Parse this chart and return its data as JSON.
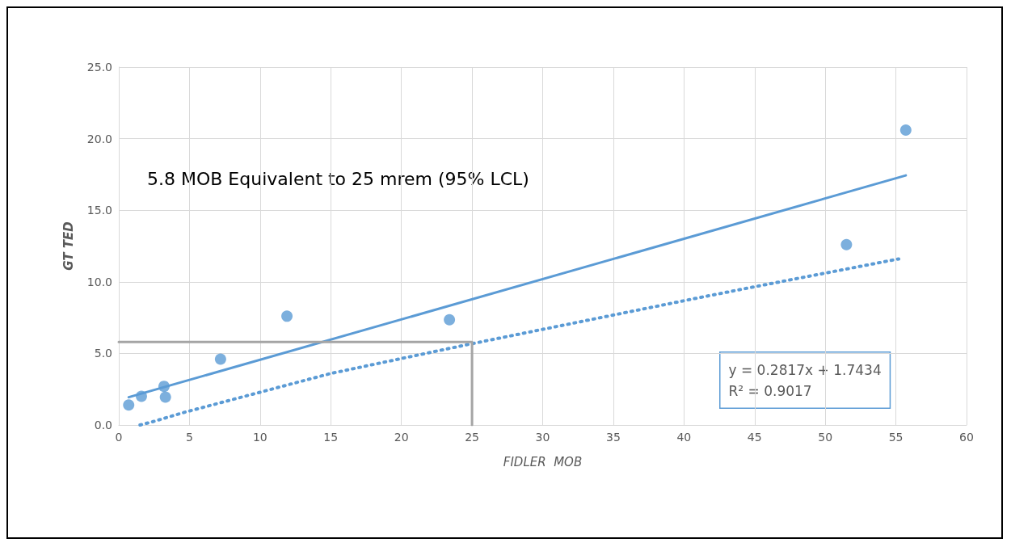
{
  "chart_data": {
    "type": "scatter",
    "xlabel": "FIDLER  MOB",
    "ylabel": "GT TED",
    "xlim": [
      0,
      60
    ],
    "xticks": [
      0,
      5,
      10,
      15,
      20,
      25,
      30,
      35,
      40,
      45,
      50,
      55,
      60
    ],
    "ylim": [
      0,
      25
    ],
    "yticks": [
      {
        "value": 0,
        "label": "0.0"
      },
      {
        "value": 5,
        "label": "5.0"
      },
      {
        "value": 10,
        "label": "10.0"
      },
      {
        "value": 15,
        "label": "15.0"
      },
      {
        "value": 20,
        "label": "20.0"
      },
      {
        "value": 25,
        "label": "25.0"
      }
    ],
    "grid": true,
    "marker": "circle",
    "series": [
      {
        "color": "#5b9bd5",
        "x": [
          0.7,
          1.6,
          3.2,
          3.3,
          7.2,
          11.9,
          23.4,
          51.5,
          55.7
        ],
        "values": [
          1.4,
          2.0,
          2.7,
          1.95,
          4.6,
          7.6,
          7.35,
          12.6,
          20.6
        ]
      },
      {
        "type": "line",
        "color": "#5b9bd5",
        "line_style": "solid",
        "marker": "none",
        "x": [
          0.7,
          55.7
        ],
        "values": [
          1.94,
          17.43
        ]
      },
      {
        "type": "line",
        "color": "#5b9bd5",
        "line_style": "dotted",
        "marker": "none",
        "x": [
          1.5,
          2.3,
          4.7,
          15.0,
          24.6,
          40.6,
          44.7,
          55.2
        ],
        "values": [
          0.0,
          0.2,
          0.9,
          3.6,
          5.6,
          8.8,
          9.6,
          11.6
        ]
      },
      {
        "type": "line",
        "color": "#a5a5a5",
        "line_style": "solid",
        "marker": "none",
        "x": [
          0,
          25,
          25
        ],
        "values": [
          5.8,
          5.8,
          0
        ]
      }
    ],
    "annotations": [
      "5.8 MOB Equivalent to 25 mrem (95% LCL)",
      "y = 0.2817x + 1.7434\nR² = 0.9017"
    ]
  }
}
